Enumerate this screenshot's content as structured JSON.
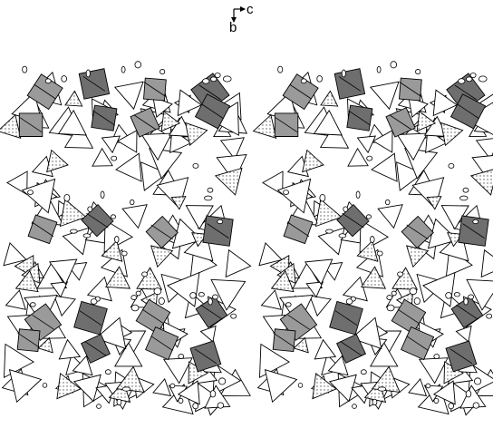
{
  "axes": {
    "horizontal": "c",
    "vertical": "b"
  }
}
